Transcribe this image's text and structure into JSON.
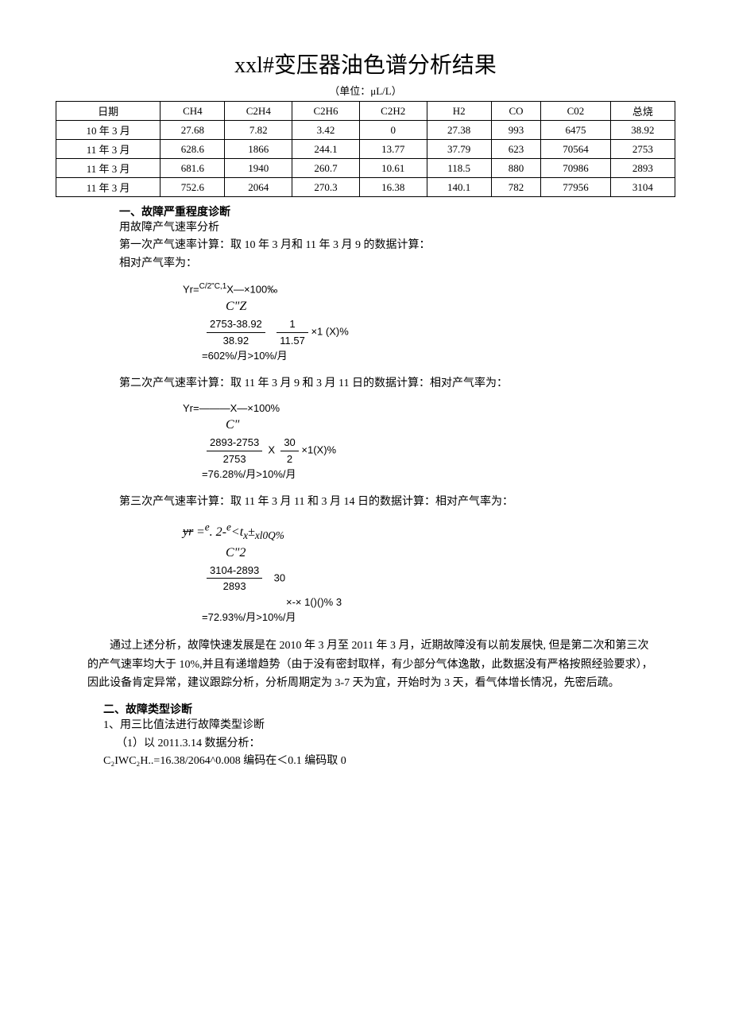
{
  "title": "xxl#变压器油色谱分析结果",
  "unit_label": "（单位：μL/L）",
  "table": {
    "columns": [
      "日期",
      "CH4",
      "C2H4",
      "C2H6",
      "C2H2",
      "H2",
      "CO",
      "C02",
      "总烧"
    ],
    "rows": [
      [
        "10 年 3 月",
        "27.68",
        "7.82",
        "3.42",
        "0",
        "27.38",
        "993",
        "6475",
        "38.92"
      ],
      [
        "11 年 3 月",
        "628.6",
        "1866",
        "244.1",
        "13.77",
        "37.79",
        "623",
        "70564",
        "2753"
      ],
      [
        "11 年 3 月",
        "681.6",
        "1940",
        "260.7",
        "10.61",
        "118.5",
        "880",
        "70986",
        "2893"
      ],
      [
        "11 年 3 月",
        "752.6",
        "2064",
        "270.3",
        "16.38",
        "140.1",
        "782",
        "77956",
        "3104"
      ]
    ],
    "column_count": 9,
    "border_color": "#000000",
    "font_size": 13
  },
  "sec1": {
    "title": "一、故障严重程度诊断",
    "line1": "用故障产气速率分析",
    "line2": "第一次产气速率计算：取 10 年 3 月和 11 年 3 月 9 的数据计算：",
    "line3": "相对产气率为：",
    "formula1": {
      "l1_left": "Yr=",
      "l1_sup": "C/2\"C,1",
      "l1_right": "X—×100‰",
      "l2": "C\"Z",
      "frac_num": "2753-38.92",
      "frac_den": "38.92",
      "frac2_num": "1",
      "frac2_den": "11.57",
      "tail": "×1 (X)%",
      "result": "=602%/月>10%/月"
    },
    "line4": "第二次产气速率计算：取 11 年 3 月 9 和 3 月 11 日的数据计算：相对产气率为：",
    "formula2": {
      "l1_left": "Yr=———X—×100%",
      "l2": "C\"",
      "frac_num": "2893-2753",
      "frac_den": "2753",
      "mid": "X",
      "frac2_num": "30",
      "frac2_den": "2",
      "tail": "×1(X)%",
      "result": "=76.28%/月>10%/月"
    },
    "line5": "第三次产气速率计算：取 11 年 3 月 11 和 3 月 14 日的数据计算：相对产气率为：",
    "formula3": {
      "l1": "=e. 2-e<tx±xl0Q%",
      "l1_left_strike": "yr",
      "l2": "C\"2",
      "frac_num": "3104-2893",
      "frac_den": "2893",
      "frac2_num": "30",
      "tail": "×-× 1()()% 3",
      "result": "=72.93%/月>10%/月"
    },
    "conclusion": "通过上述分析，故障快速发展是在 2010 年 3 月至 2011 年 3 月，近期故障没有以前发展快, 但是第二次和第三次的产气速率均大于 10%,并且有递增趋势（由于没有密封取样，有少部分气体逸散，此数据没有严格按照经验要求），因此设备肯定异常，建议跟踪分析，分析周期定为 3-7 天为宜，开始时为 3 天，看气体增长情况，先密后疏。"
  },
  "sec2": {
    "title": "二、故障类型诊断",
    "line1": "1、用三比值法进行故障类型诊断",
    "line2": "（1）以 2011.3.14 数据分析：",
    "line3": "C₂IWC₂H..=16.38/2064^0.008 编码在＜0.1 编码取 0"
  }
}
